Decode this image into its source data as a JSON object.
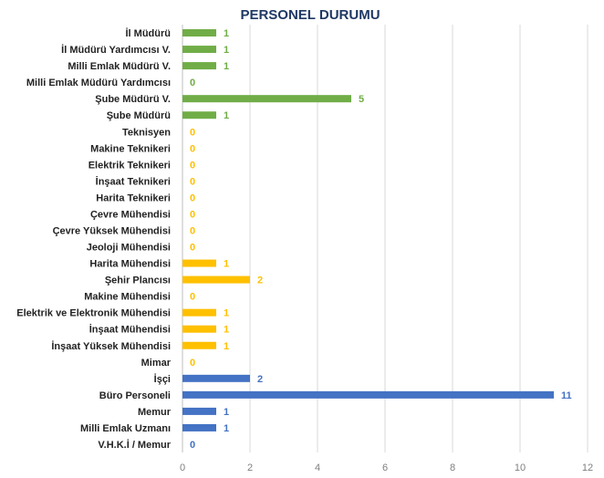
{
  "chart_data": {
    "type": "bar",
    "orientation": "horizontal",
    "title": "PERSONEL DURUMU",
    "xlabel": "",
    "ylabel": "",
    "xlim": [
      0,
      12
    ],
    "x_ticks": [
      "0",
      "2",
      "4",
      "6",
      "8",
      "10",
      "12"
    ],
    "grid": "vertical",
    "legend": "none",
    "categories": [
      "İl Müdürü",
      "İl Müdürü Yardımcısı V.",
      "Milli Emlak Müdürü V.",
      "Milli Emlak Müdürü Yardımcısı",
      "Şube Müdürü V.",
      "Şube Müdürü",
      "Teknisyen",
      "Makine Teknikeri",
      "Elektrik Teknikeri",
      "İnşaat Teknikeri",
      "Harita Teknikeri",
      "Çevre Mühendisi",
      "Çevre Yüksek Mühendisi",
      "Jeoloji Mühendisi",
      "Harita Mühendisi",
      "Şehir Plancısı",
      "Makine Mühendisi",
      "Elektrik ve Elektronik Mühendisi",
      "İnşaat Mühendisi",
      "İnşaat Yüksek Mühendisi",
      "Mimar",
      "İşçi",
      "Büro Personeli",
      "Memur",
      "Milli Emlak Uzmanı",
      "V.H.K.İ / Memur"
    ],
    "values": [
      1,
      1,
      1,
      0,
      5,
      1,
      0,
      0,
      0,
      0,
      0,
      0,
      0,
      0,
      1,
      2,
      0,
      1,
      1,
      1,
      0,
      2,
      11,
      1,
      1,
      0
    ],
    "groups": [
      0,
      0,
      0,
      0,
      0,
      0,
      1,
      1,
      1,
      1,
      1,
      1,
      1,
      1,
      1,
      1,
      1,
      1,
      1,
      1,
      1,
      2,
      2,
      2,
      2,
      2
    ],
    "group_colors": [
      "#70ad47",
      "#ffc000",
      "#4472c4"
    ]
  }
}
